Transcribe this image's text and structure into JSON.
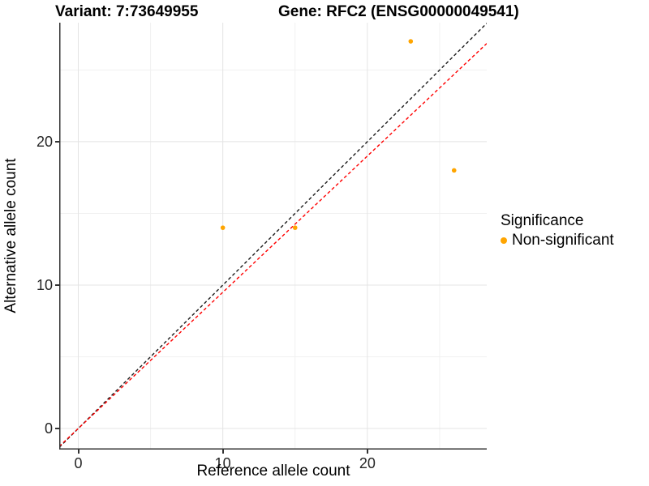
{
  "figure": {
    "title_left": "Variant: 7:73649955",
    "title_right": "Gene: RFC2 (ENSG00000049541)"
  },
  "chart_data": {
    "type": "scatter",
    "title_left": "Variant: 7:73649955",
    "title_right": "Gene: RFC2 (ENSG00000049541)",
    "xlabel": "Reference allele count",
    "ylabel": "Alternative allele count",
    "x_range": [
      -1.32,
      28.26
    ],
    "y_range": [
      -1.47,
      28.3
    ],
    "x_ticks": {
      "values": [
        0,
        10,
        20
      ],
      "labels": [
        "0",
        "10",
        "20"
      ]
    },
    "y_ticks": {
      "values": [
        0,
        10,
        20
      ],
      "labels": [
        "0",
        "10",
        "20"
      ]
    },
    "x_minor": [
      5,
      15,
      25
    ],
    "y_minor": [
      5,
      15,
      25
    ],
    "grid": {
      "major_color": "#e4e4e4",
      "minor_color": "#f1f1f1",
      "show": true
    },
    "axis_color": "#333333",
    "points": [
      {
        "x": 10,
        "y": 14
      },
      {
        "x": 15,
        "y": 14
      },
      {
        "x": 23,
        "y": 27
      },
      {
        "x": 26,
        "y": 18
      }
    ],
    "point_color": "#FFA500",
    "lines": [
      {
        "name": "identity-line",
        "slope": 1.0,
        "intercept": 0,
        "color": "#1a1a1a",
        "dash": "4,3"
      },
      {
        "name": "expected-ratio-line",
        "slope": 0.95,
        "intercept": 0,
        "color": "#ff0000",
        "dash": "4,3"
      }
    ],
    "legend": {
      "title": "Significance",
      "position": "right",
      "items": [
        {
          "label": "Non-significant",
          "color": "#FFA500"
        }
      ]
    }
  }
}
